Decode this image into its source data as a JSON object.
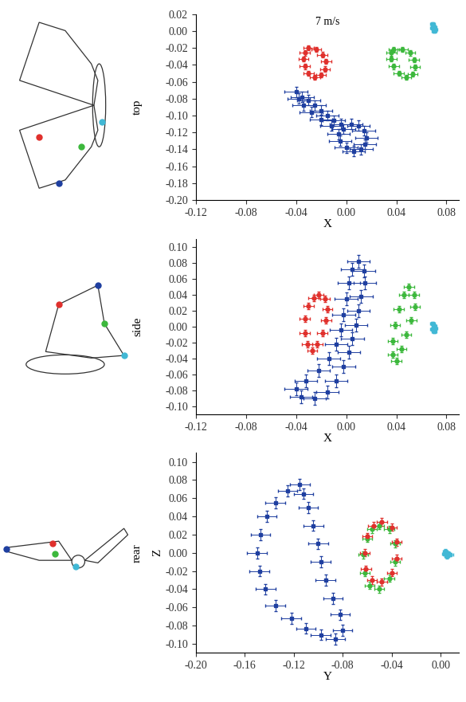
{
  "chart_data": [
    {
      "type": "scatter",
      "title": "7 m/s",
      "x_label": "X",
      "annotations": [
        "top"
      ],
      "xlim": [
        -0.12,
        0.09
      ],
      "ylim": [
        -0.2,
        0.02
      ],
      "xticks": [
        -0.12,
        -0.08,
        -0.04,
        {
          "value": 0,
          "label": "0.00"
        },
        0.04,
        0.08
      ],
      "yticks": [
        {
          "value": -0.2,
          "label": "-0.20"
        },
        -0.18,
        -0.16,
        -0.14,
        -0.12,
        {
          "value": -0.1,
          "label": "-0.10"
        },
        -0.08,
        -0.06,
        -0.04,
        -0.02,
        {
          "value": 0,
          "label": "0.00"
        },
        0.02
      ],
      "grid": false,
      "series": [
        {
          "color": "#41b8d5",
          "marker": "square",
          "xerr": 0.002,
          "yerr": 0.002,
          "x": [
            0.069,
            0.07,
            0.071,
            0.07,
            0.069
          ],
          "y": [
            0.008,
            0.005,
            0.002,
            0.0,
            0.004
          ]
        },
        {
          "color": "#3cb83c",
          "marker": "circle",
          "xerr": 0.004,
          "yerr": 0.003,
          "x": [
            0.038,
            0.045,
            0.051,
            0.054,
            0.055,
            0.053,
            0.048,
            0.042,
            0.038,
            0.036,
            0.036
          ],
          "y": [
            -0.022,
            -0.022,
            -0.026,
            -0.034,
            -0.043,
            -0.051,
            -0.055,
            -0.05,
            -0.042,
            -0.033,
            -0.026
          ]
        },
        {
          "color": "#e0302c",
          "marker": "circle",
          "xerr": 0.004,
          "yerr": 0.003,
          "x": [
            -0.03,
            -0.024,
            -0.019,
            -0.016,
            -0.017,
            -0.02,
            -0.025,
            -0.03,
            -0.033,
            -0.034,
            -0.033
          ],
          "y": [
            -0.02,
            -0.022,
            -0.028,
            -0.036,
            -0.045,
            -0.052,
            -0.055,
            -0.05,
            -0.042,
            -0.033,
            -0.026
          ]
        },
        {
          "color": "#1f3fa0",
          "marker": "square",
          "xerr": 0.009,
          "yerr": 0.006,
          "x": [
            -0.04,
            -0.035,
            -0.03,
            -0.025,
            -0.02,
            -0.015,
            -0.01,
            -0.004,
            0.004,
            0.01,
            0.014,
            0.016,
            0.015,
            0.012,
            0.006,
            0.0,
            -0.005,
            -0.006,
            -0.002,
            -0.012,
            -0.02,
            -0.028,
            -0.034,
            -0.038
          ],
          "y": [
            -0.072,
            -0.078,
            -0.082,
            -0.088,
            -0.094,
            -0.1,
            -0.106,
            -0.11,
            -0.11,
            -0.112,
            -0.118,
            -0.126,
            -0.134,
            -0.14,
            -0.142,
            -0.138,
            -0.13,
            -0.122,
            -0.116,
            -0.112,
            -0.105,
            -0.096,
            -0.088,
            -0.08
          ]
        }
      ]
    },
    {
      "type": "scatter",
      "x_label": "X",
      "annotations": [
        "side"
      ],
      "xlim": [
        -0.12,
        0.09
      ],
      "ylim": [
        -0.11,
        0.11
      ],
      "xticks": [
        -0.12,
        -0.08,
        -0.04,
        {
          "value": 0,
          "label": "0.00"
        },
        0.04,
        0.08
      ],
      "yticks": [
        {
          "value": -0.1,
          "label": "-0.10"
        },
        -0.08,
        -0.06,
        -0.04,
        -0.02,
        {
          "value": 0,
          "label": "0.00"
        },
        0.02,
        0.04,
        0.06,
        0.08,
        {
          "value": 0.1,
          "label": "0.10"
        }
      ],
      "grid": false,
      "series": [
        {
          "color": "#41b8d5",
          "marker": "square",
          "xerr": 0.002,
          "yerr": 0.002,
          "x": [
            0.069,
            0.07,
            0.071,
            0.07,
            0.069
          ],
          "y": [
            0.004,
            0.001,
            -0.002,
            -0.006,
            -0.003
          ]
        },
        {
          "color": "#3cb83c",
          "marker": "circle",
          "xerr": 0.004,
          "yerr": 0.004,
          "x": [
            0.05,
            0.054,
            0.055,
            0.052,
            0.048,
            0.044,
            0.04,
            0.037,
            0.037,
            0.039,
            0.042,
            0.046
          ],
          "y": [
            0.05,
            0.04,
            0.025,
            0.008,
            -0.01,
            -0.028,
            -0.043,
            -0.035,
            -0.018,
            0.002,
            0.022,
            0.04
          ]
        },
        {
          "color": "#e0302c",
          "marker": "circle",
          "xerr": 0.004,
          "yerr": 0.004,
          "x": [
            -0.022,
            -0.017,
            -0.015,
            -0.016,
            -0.019,
            -0.023,
            -0.027,
            -0.031,
            -0.033,
            -0.033,
            -0.03,
            -0.026
          ],
          "y": [
            0.04,
            0.035,
            0.022,
            0.008,
            -0.008,
            -0.022,
            -0.03,
            -0.022,
            -0.008,
            0.01,
            0.026,
            0.036
          ]
        },
        {
          "color": "#1f3fa0",
          "marker": "square",
          "xerr": 0.009,
          "yerr": 0.008,
          "x": [
            0.01,
            0.014,
            0.015,
            0.012,
            0.01,
            0.008,
            0.005,
            0.002,
            -0.002,
            -0.008,
            -0.015,
            -0.025,
            -0.036,
            -0.04,
            -0.032,
            -0.022,
            -0.014,
            -0.008,
            -0.004,
            -0.002,
            0.0,
            0.002,
            0.005
          ],
          "y": [
            0.082,
            0.07,
            0.055,
            0.038,
            0.02,
            0.002,
            -0.015,
            -0.032,
            -0.05,
            -0.068,
            -0.082,
            -0.09,
            -0.088,
            -0.078,
            -0.068,
            -0.055,
            -0.04,
            -0.022,
            -0.004,
            0.015,
            0.035,
            0.055,
            0.072
          ]
        }
      ]
    },
    {
      "type": "scatter",
      "x_label": "Y",
      "y_label": "Z",
      "annotations": [
        "rear"
      ],
      "xlim": [
        -0.2,
        0.015
      ],
      "ylim": [
        -0.11,
        0.11
      ],
      "xticks": [
        {
          "value": -0.2,
          "label": "-0.20"
        },
        -0.16,
        -0.12,
        -0.08,
        -0.04,
        {
          "value": 0,
          "label": "0.00"
        }
      ],
      "yticks": [
        {
          "value": -0.1,
          "label": "-0.10"
        },
        -0.08,
        -0.06,
        -0.04,
        -0.02,
        {
          "value": 0,
          "label": "0.00"
        },
        0.02,
        0.04,
        0.06,
        0.08,
        {
          "value": 0.1,
          "label": "0.10"
        }
      ],
      "grid": false,
      "series": [
        {
          "color": "#41b8d5",
          "marker": "square",
          "xerr": 0.002,
          "yerr": 0.002,
          "x": [
            0.004,
            0.006,
            0.008,
            0.005,
            0.003
          ],
          "y": [
            0.002,
            0.0,
            -0.002,
            -0.004,
            -0.001
          ]
        },
        {
          "color": "#3cb83c",
          "marker": "circle",
          "xerr": 0.004,
          "yerr": 0.004,
          "x": [
            -0.05,
            -0.042,
            -0.037,
            -0.037,
            -0.042,
            -0.05,
            -0.058,
            -0.062,
            -0.063,
            -0.06,
            -0.056
          ],
          "y": [
            0.03,
            0.026,
            0.01,
            -0.01,
            -0.028,
            -0.04,
            -0.036,
            -0.022,
            -0.002,
            0.016,
            0.026
          ]
        },
        {
          "color": "#e0302c",
          "marker": "circle",
          "xerr": 0.004,
          "yerr": 0.004,
          "x": [
            -0.048,
            -0.04,
            -0.036,
            -0.036,
            -0.04,
            -0.048,
            -0.056,
            -0.061,
            -0.062,
            -0.06,
            -0.055
          ],
          "y": [
            0.034,
            0.028,
            0.012,
            -0.006,
            -0.022,
            -0.032,
            -0.03,
            -0.018,
            0.0,
            0.018,
            0.03
          ]
        },
        {
          "color": "#1f3fa0",
          "marker": "square",
          "xerr": 0.008,
          "yerr": 0.006,
          "x": [
            -0.115,
            -0.125,
            -0.135,
            -0.142,
            -0.147,
            -0.15,
            -0.148,
            -0.143,
            -0.135,
            -0.122,
            -0.11,
            -0.098,
            -0.086,
            -0.08,
            -0.082,
            -0.088,
            -0.094,
            -0.098,
            -0.1,
            -0.104,
            -0.108,
            -0.112
          ],
          "y": [
            0.075,
            0.068,
            0.055,
            0.04,
            0.02,
            0.0,
            -0.02,
            -0.04,
            -0.058,
            -0.072,
            -0.083,
            -0.09,
            -0.095,
            -0.085,
            -0.068,
            -0.05,
            -0.03,
            -0.01,
            0.01,
            0.03,
            0.05,
            0.065
          ]
        }
      ]
    }
  ]
}
